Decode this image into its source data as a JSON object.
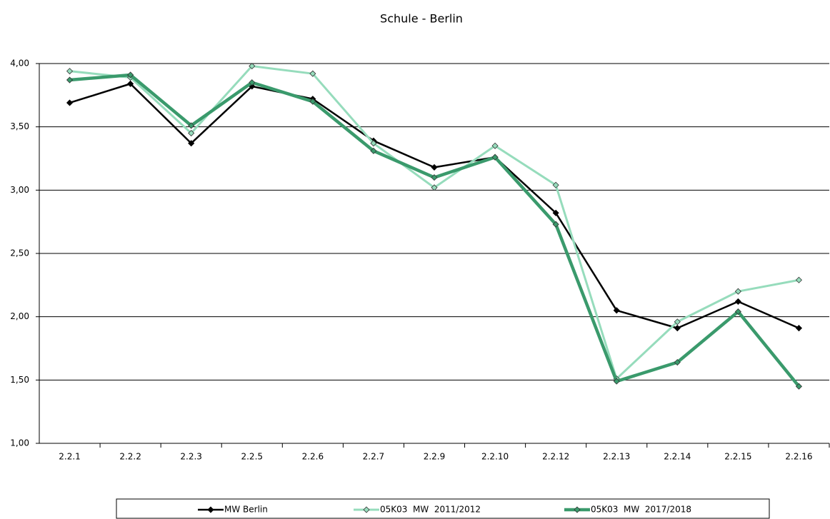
{
  "chart_data": {
    "type": "line",
    "title": "Schule - Berlin",
    "categories": [
      "2.2.1",
      "2.2.2",
      "2.2.3",
      "2.2.5",
      "2.2.6",
      "2.2.7",
      "2.2.9",
      "2.2.10",
      "2.2.12",
      "2.2.13",
      "2.2.14",
      "2.2.15",
      "2.2.16"
    ],
    "series": [
      {
        "name": "MW Berlin",
        "color": "#000000",
        "values": [
          3.69,
          3.84,
          3.37,
          3.82,
          3.72,
          3.39,
          3.18,
          3.26,
          2.82,
          2.05,
          1.91,
          2.12,
          1.91
        ]
      },
      {
        "name": "05K03  MW  2011/2012",
        "color": "#96dcbc",
        "values": [
          3.94,
          3.89,
          3.45,
          3.98,
          3.92,
          3.37,
          3.02,
          3.35,
          3.04,
          1.51,
          1.96,
          2.2,
          2.29
        ]
      },
      {
        "name": "05K03  MW  2017/2018",
        "color": "#3a9a6c",
        "values": [
          3.87,
          3.91,
          3.51,
          3.85,
          3.7,
          3.31,
          3.1,
          3.26,
          2.73,
          1.49,
          1.64,
          2.04,
          1.45
        ]
      }
    ],
    "ylim": [
      1,
      4
    ],
    "yticks": [
      {
        "value": 1,
        "label": "1,00"
      },
      {
        "value": 1.5,
        "label": "1,50"
      },
      {
        "value": 2,
        "label": "2,00"
      },
      {
        "value": 2.5,
        "label": "2,50"
      },
      {
        "value": 3,
        "label": "3,00"
      },
      {
        "value": 3.5,
        "label": "3,50"
      },
      {
        "value": 4,
        "label": "4,00"
      }
    ],
    "grid": true,
    "legend": "bottom"
  }
}
